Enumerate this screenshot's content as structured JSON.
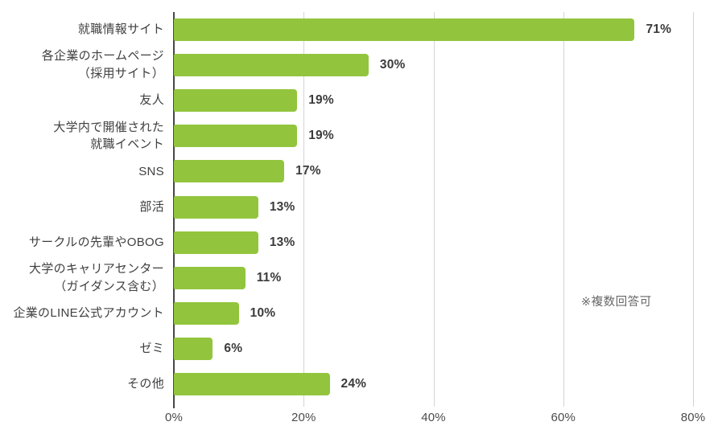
{
  "chart_data": {
    "type": "bar",
    "orientation": "horizontal",
    "title": "",
    "categories": [
      "就職情報サイト",
      "各企業のホームページ\n（採用サイト）",
      "友人",
      "大学内で開催された\n就職イベント",
      "SNS",
      "部活",
      "サークルの先輩やOBOG",
      "大学のキャリアセンター\n（ガイダンス含む）",
      "企業のLINE公式アカウント",
      "ゼミ",
      "その他"
    ],
    "values": [
      71,
      30,
      19,
      19,
      17,
      13,
      13,
      11,
      10,
      6,
      24
    ],
    "value_labels": [
      "71%",
      "30%",
      "19%",
      "19%",
      "17%",
      "13%",
      "13%",
      "11%",
      "10%",
      "6%",
      "24%"
    ],
    "x_ticks": [
      "0%",
      "20%",
      "40%",
      "60%",
      "80%"
    ],
    "x_tick_values": [
      0,
      20,
      40,
      60,
      80
    ],
    "xlim": [
      0,
      80
    ],
    "grid": true,
    "legend": false,
    "note": "※複数回答可",
    "colors": {
      "bar": "#92c53d",
      "axis": "#474747",
      "gridline": "#d4d4d4",
      "category_text": "#404040",
      "value_text": "#3b3b3b",
      "tick_text": "#4b4b4b",
      "note_text": "#666666",
      "background": "#ffffff"
    }
  }
}
